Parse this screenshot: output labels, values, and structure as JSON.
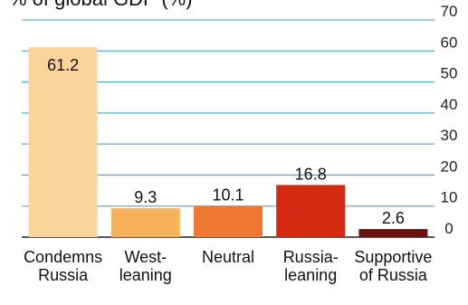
{
  "chart_data": {
    "type": "bar",
    "title": "% of global GDP (%)",
    "categories": [
      [
        "Condemns",
        "Russia"
      ],
      [
        "West-",
        "leaning"
      ],
      [
        "Neutral"
      ],
      [
        "Russia-",
        "leaning"
      ],
      [
        "Supportive",
        "of Russia"
      ]
    ],
    "values": [
      61.2,
      9.3,
      10.1,
      16.8,
      2.6
    ],
    "data_labels": [
      "61.2",
      "9.3",
      "10.1",
      "16.8",
      "2.6"
    ],
    "bar_colors": [
      "#fbd49b",
      "#f7b25c",
      "#ef7931",
      "#d42a12",
      "#6a1111"
    ],
    "ylim": [
      0,
      70
    ],
    "yticks": [
      0,
      10,
      20,
      30,
      40,
      50,
      60,
      70
    ],
    "ytick_side": "right",
    "grid": true,
    "grid_color": "#58aeca",
    "axis_color": "#222222",
    "xlabel": "",
    "ylabel": ""
  }
}
